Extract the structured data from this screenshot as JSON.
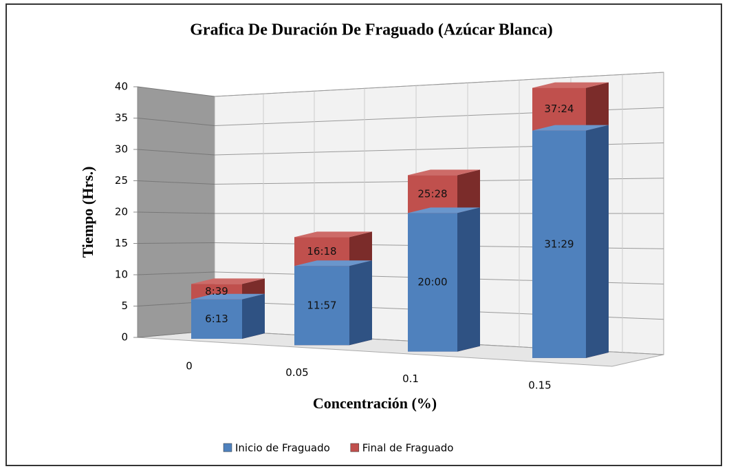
{
  "chart_data": {
    "type": "bar",
    "title": "Grafica De Duración De Fraguado (Azúcar Blanca)",
    "xlabel": "Concentración (%)",
    "ylabel": "Tiempo (Hrs.)",
    "categories": [
      "0",
      "0.05",
      "0.1",
      "0.15"
    ],
    "series": [
      {
        "name": "Inicio de Fraguado",
        "color": "#4f81bd",
        "values": [
          6.2167,
          11.95,
          20,
          31.4833
        ],
        "value_labels": [
          "6:13",
          "11:57",
          "20:00",
          "31:29"
        ]
      },
      {
        "name": "Final de Fraguado",
        "color": "#c0504d",
        "values": [
          8.65,
          16.3,
          25.4667,
          37.4
        ],
        "value_labels": [
          "8:39",
          "16:18",
          "25:28",
          "37:24"
        ]
      }
    ],
    "ylim": [
      0,
      40
    ],
    "yticks": [
      0,
      5,
      10,
      15,
      20,
      25,
      30,
      35,
      40
    ],
    "grid": true,
    "legend": "bottom"
  }
}
